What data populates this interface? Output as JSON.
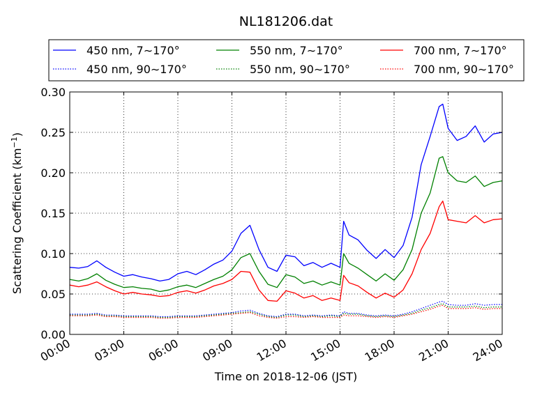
{
  "chart_data": {
    "type": "line",
    "title": "NL181206.dat",
    "xlabel": "Time on 2018-12-06 (JST)",
    "ylabel": "Scattering Coefficient (km",
    "ylabel_sup": "−1",
    "ylabel_close": ")",
    "x_unit": "hours",
    "xlim": [
      0,
      24
    ],
    "ylim": [
      0,
      0.3
    ],
    "grid": true,
    "legend_position": "top-center",
    "x_ticks": [
      0,
      3,
      6,
      9,
      12,
      15,
      18,
      21,
      24
    ],
    "x_tick_labels": [
      "00:00",
      "03:00",
      "06:00",
      "09:00",
      "12:00",
      "15:00",
      "18:00",
      "21:00",
      "24:00"
    ],
    "y_ticks": [
      0,
      0.05,
      0.1,
      0.15,
      0.2,
      0.25,
      0.3
    ],
    "y_tick_labels": [
      "0.00",
      "0.05",
      "0.10",
      "0.15",
      "0.20",
      "0.25",
      "0.30"
    ],
    "legend": [
      "450 nm, 7∼170°",
      "550 nm, 7∼170°",
      "700 nm, 7∼170°",
      "450 nm, 90∼170°",
      "550 nm, 90∼170°",
      "700 nm, 90∼170°"
    ],
    "x": [
      0,
      0.5,
      1,
      1.5,
      2,
      2.5,
      3,
      3.5,
      4,
      4.5,
      5,
      5.5,
      6,
      6.5,
      7,
      7.5,
      8,
      8.5,
      9,
      9.5,
      10,
      10.5,
      11,
      11.5,
      12,
      12.5,
      13,
      13.5,
      14,
      14.5,
      15,
      15.2,
      15.5,
      16,
      16.5,
      17,
      17.5,
      18,
      18.5,
      19,
      19.5,
      20,
      20.5,
      20.7,
      21,
      21.5,
      22,
      22.5,
      23,
      23.5,
      24
    ],
    "series": [
      {
        "name": "450 nm, 7∼170°",
        "color": "#0000ff",
        "style": "solid",
        "values": [
          0.083,
          0.082,
          0.084,
          0.091,
          0.083,
          0.077,
          0.072,
          0.074,
          0.071,
          0.069,
          0.066,
          0.068,
          0.075,
          0.078,
          0.074,
          0.08,
          0.087,
          0.092,
          0.103,
          0.125,
          0.135,
          0.105,
          0.083,
          0.078,
          0.098,
          0.096,
          0.085,
          0.089,
          0.083,
          0.088,
          0.083,
          0.14,
          0.123,
          0.117,
          0.104,
          0.094,
          0.105,
          0.095,
          0.11,
          0.145,
          0.21,
          0.245,
          0.282,
          0.285,
          0.255,
          0.24,
          0.245,
          0.258,
          0.238,
          0.248,
          0.25
        ]
      },
      {
        "name": "550 nm, 7∼170°",
        "color": "#008000",
        "style": "solid",
        "values": [
          0.068,
          0.066,
          0.069,
          0.075,
          0.067,
          0.062,
          0.058,
          0.059,
          0.057,
          0.056,
          0.053,
          0.055,
          0.059,
          0.061,
          0.058,
          0.063,
          0.068,
          0.072,
          0.08,
          0.095,
          0.1,
          0.078,
          0.062,
          0.058,
          0.074,
          0.071,
          0.063,
          0.066,
          0.061,
          0.065,
          0.061,
          0.1,
          0.088,
          0.082,
          0.074,
          0.066,
          0.075,
          0.067,
          0.08,
          0.105,
          0.15,
          0.175,
          0.218,
          0.22,
          0.2,
          0.19,
          0.188,
          0.196,
          0.183,
          0.188,
          0.19
        ]
      },
      {
        "name": "700 nm, 7∼170°",
        "color": "#ff0000",
        "style": "solid",
        "values": [
          0.061,
          0.059,
          0.061,
          0.065,
          0.059,
          0.054,
          0.05,
          0.052,
          0.05,
          0.049,
          0.047,
          0.048,
          0.052,
          0.054,
          0.051,
          0.055,
          0.06,
          0.063,
          0.068,
          0.078,
          0.077,
          0.055,
          0.042,
          0.041,
          0.054,
          0.051,
          0.045,
          0.048,
          0.042,
          0.045,
          0.042,
          0.073,
          0.064,
          0.06,
          0.052,
          0.045,
          0.051,
          0.046,
          0.055,
          0.075,
          0.105,
          0.125,
          0.158,
          0.165,
          0.142,
          0.14,
          0.138,
          0.147,
          0.138,
          0.142,
          0.143
        ]
      },
      {
        "name": "450 nm, 90∼170°",
        "color": "#0000ff",
        "style": "dotted",
        "values": [
          0.025,
          0.025,
          0.025,
          0.026,
          0.024,
          0.024,
          0.023,
          0.023,
          0.023,
          0.023,
          0.022,
          0.022,
          0.023,
          0.023,
          0.023,
          0.024,
          0.025,
          0.026,
          0.027,
          0.029,
          0.03,
          0.026,
          0.023,
          0.022,
          0.025,
          0.025,
          0.023,
          0.024,
          0.023,
          0.024,
          0.023,
          0.028,
          0.026,
          0.026,
          0.024,
          0.023,
          0.024,
          0.023,
          0.025,
          0.028,
          0.032,
          0.036,
          0.04,
          0.041,
          0.037,
          0.036,
          0.036,
          0.038,
          0.036,
          0.037,
          0.037
        ]
      },
      {
        "name": "550 nm, 90∼170°",
        "color": "#008000",
        "style": "dotted",
        "values": [
          0.024,
          0.024,
          0.024,
          0.025,
          0.023,
          0.023,
          0.022,
          0.022,
          0.022,
          0.022,
          0.021,
          0.021,
          0.022,
          0.022,
          0.022,
          0.023,
          0.024,
          0.025,
          0.026,
          0.027,
          0.028,
          0.025,
          0.022,
          0.021,
          0.024,
          0.024,
          0.022,
          0.023,
          0.022,
          0.023,
          0.022,
          0.026,
          0.025,
          0.025,
          0.023,
          0.022,
          0.023,
          0.022,
          0.024,
          0.026,
          0.03,
          0.033,
          0.037,
          0.038,
          0.034,
          0.034,
          0.034,
          0.035,
          0.033,
          0.034,
          0.034
        ]
      },
      {
        "name": "700 nm, 90∼170°",
        "color": "#ff0000",
        "style": "dotted",
        "values": [
          0.023,
          0.023,
          0.023,
          0.024,
          0.022,
          0.022,
          0.021,
          0.021,
          0.021,
          0.021,
          0.02,
          0.02,
          0.021,
          0.021,
          0.021,
          0.022,
          0.023,
          0.024,
          0.025,
          0.026,
          0.027,
          0.023,
          0.021,
          0.02,
          0.022,
          0.022,
          0.021,
          0.022,
          0.021,
          0.021,
          0.021,
          0.024,
          0.023,
          0.023,
          0.022,
          0.021,
          0.022,
          0.021,
          0.023,
          0.025,
          0.028,
          0.031,
          0.035,
          0.036,
          0.032,
          0.032,
          0.032,
          0.033,
          0.031,
          0.032,
          0.032
        ]
      }
    ]
  }
}
